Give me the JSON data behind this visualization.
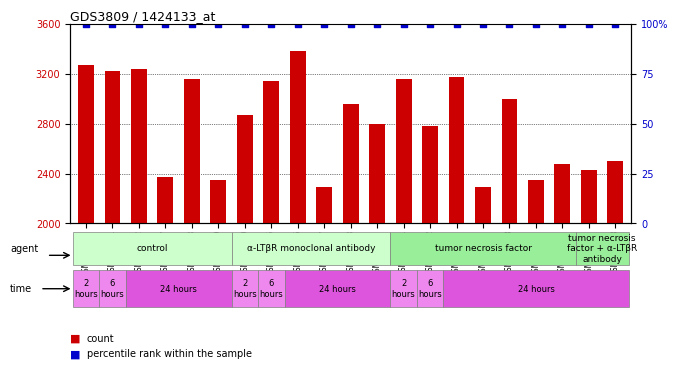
{
  "title": "GDS3809 / 1424133_at",
  "samples": [
    "GSM375930",
    "GSM375931",
    "GSM376012",
    "GSM376017",
    "GSM376018",
    "GSM376019",
    "GSM376020",
    "GSM376025",
    "GSM376026",
    "GSM376027",
    "GSM376028",
    "GSM376030",
    "GSM376031",
    "GSM376032",
    "GSM376034",
    "GSM376037",
    "GSM376038",
    "GSM376039",
    "GSM376045",
    "GSM376047",
    "GSM376048"
  ],
  "counts": [
    3270,
    3220,
    3240,
    2370,
    3160,
    2350,
    2870,
    3140,
    3380,
    2290,
    2960,
    2800,
    3160,
    2780,
    3170,
    2290,
    3000,
    2350,
    2480,
    2430,
    2500
  ],
  "percentiles": [
    100,
    100,
    100,
    100,
    100,
    100,
    100,
    100,
    100,
    100,
    100,
    100,
    100,
    100,
    100,
    100,
    100,
    100,
    100,
    100,
    100
  ],
  "ylim_left": [
    2000,
    3600
  ],
  "ylim_right": [
    0,
    100
  ],
  "yticks_left": [
    2000,
    2400,
    2800,
    3200,
    3600
  ],
  "yticks_right": [
    0,
    25,
    50,
    75,
    100
  ],
  "bar_color": "#cc0000",
  "dot_color": "#0000cc",
  "bar_width": 0.6,
  "agent_groups": [
    {
      "label": "control",
      "start": 0,
      "end": 5,
      "color": "#ccffcc"
    },
    {
      "label": "α-LTβR monoclonal antibody",
      "start": 6,
      "end": 11,
      "color": "#ccffcc"
    },
    {
      "label": "tumor necrosis factor",
      "start": 12,
      "end": 18,
      "color": "#99ee99"
    },
    {
      "label": "tumor necrosis\nfactor + α-LTβR\nantibody",
      "start": 19,
      "end": 20,
      "color": "#99ee99"
    }
  ],
  "time_groups": [
    {
      "label": "2\nhours",
      "start": 0,
      "end": 0,
      "color": "#ee88ee"
    },
    {
      "label": "6\nhours",
      "start": 1,
      "end": 1,
      "color": "#ee88ee"
    },
    {
      "label": "24 hours",
      "start": 2,
      "end": 5,
      "color": "#dd55dd"
    },
    {
      "label": "2\nhours",
      "start": 6,
      "end": 6,
      "color": "#ee88ee"
    },
    {
      "label": "6\nhours",
      "start": 7,
      "end": 7,
      "color": "#ee88ee"
    },
    {
      "label": "24 hours",
      "start": 8,
      "end": 11,
      "color": "#dd55dd"
    },
    {
      "label": "2\nhours",
      "start": 12,
      "end": 12,
      "color": "#ee88ee"
    },
    {
      "label": "6\nhours",
      "start": 13,
      "end": 13,
      "color": "#ee88ee"
    },
    {
      "label": "24 hours",
      "start": 14,
      "end": 20,
      "color": "#dd55dd"
    }
  ]
}
